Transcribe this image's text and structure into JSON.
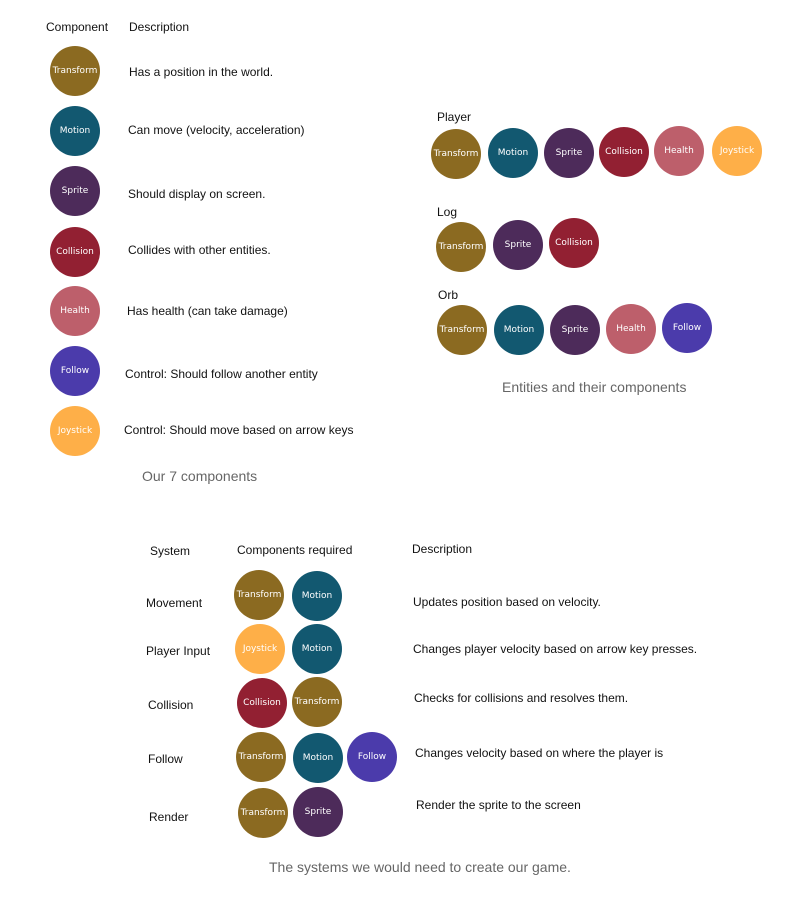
{
  "colors": {
    "Transform": "#8b6a21",
    "Motion": "#125870",
    "Sprite": "#4d2b5a",
    "Collision": "#922032",
    "Health": "#bd5f6b",
    "Follow": "#4b3bab",
    "Joystick": "#feaf48"
  },
  "components": {
    "header_component": "Component",
    "header_description": "Description",
    "caption": "Our 7 components",
    "items": [
      {
        "name": "Transform",
        "description": "Has a position in the world."
      },
      {
        "name": "Motion",
        "description": "Can move (velocity, acceleration)"
      },
      {
        "name": "Sprite",
        "description": "Should display on screen."
      },
      {
        "name": "Collision",
        "description": "Collides with other entities."
      },
      {
        "name": "Health",
        "description": "Has health (can take damage)"
      },
      {
        "name": "Follow",
        "description": "Control: Should follow another entity"
      },
      {
        "name": "Joystick",
        "description": "Control: Should move based on arrow keys"
      }
    ]
  },
  "entities": {
    "caption": "Entities and their components",
    "items": [
      {
        "name": "Player",
        "components": [
          "Transform",
          "Motion",
          "Sprite",
          "Collision",
          "Health",
          "Joystick"
        ]
      },
      {
        "name": "Log",
        "components": [
          "Transform",
          "Sprite",
          "Collision"
        ]
      },
      {
        "name": "Orb",
        "components": [
          "Transform",
          "Motion",
          "Sprite",
          "Health",
          "Follow"
        ]
      }
    ]
  },
  "systems": {
    "header_system": "System",
    "header_components": "Components required",
    "header_description": "Description",
    "caption": "The systems we would need to create our game.",
    "items": [
      {
        "name": "Movement",
        "components": [
          "Transform",
          "Motion"
        ],
        "description": "Updates position based on velocity."
      },
      {
        "name": "Player Input",
        "components": [
          "Joystick",
          "Motion"
        ],
        "description": "Changes player velocity based on arrow key presses."
      },
      {
        "name": "Collision",
        "components": [
          "Collision",
          "Transform"
        ],
        "description": "Checks for collisions and resolves them."
      },
      {
        "name": "Follow",
        "components": [
          "Transform",
          "Motion",
          "Follow"
        ],
        "description": "Changes velocity based on where the player is"
      },
      {
        "name": "Render",
        "components": [
          "Transform",
          "Sprite"
        ],
        "description": "Render the sprite to the screen"
      }
    ]
  }
}
